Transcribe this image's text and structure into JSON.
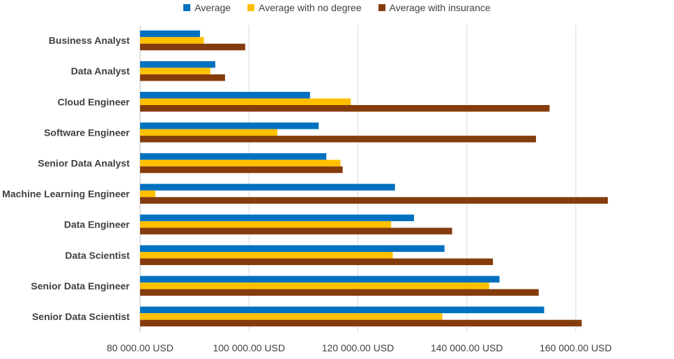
{
  "chart_data": {
    "type": "bar",
    "orientation": "horizontal",
    "categories": [
      "Business Analyst",
      "Data Analyst",
      "Cloud Engineer",
      "Software Engineer",
      "Senior Data Analyst",
      "Machine Learning Engineer",
      "Data Engineer",
      "Data Scientist",
      "Senior Data Engineer",
      "Senior Data Scientist"
    ],
    "series": [
      {
        "name": "Average",
        "color": "#0070C0",
        "values": [
          91000,
          93800,
          111200,
          112800,
          114200,
          126800,
          130300,
          135900,
          146000,
          154200
        ]
      },
      {
        "name": "Average with no degree",
        "color": "#FFC000",
        "values": [
          91700,
          92900,
          118700,
          105200,
          116800,
          82800,
          126100,
          126400,
          144100,
          135500
        ]
      },
      {
        "name": "Average with insurance",
        "color": "#843C0C",
        "values": [
          99300,
          95600,
          155200,
          152700,
          117200,
          165900,
          137300,
          144800,
          153200,
          161100
        ]
      }
    ],
    "xlim": [
      80000,
      160000
    ],
    "xticks": [
      80000,
      100000,
      120000,
      140000,
      160000
    ],
    "xtick_labels": [
      "80 000.00 USD",
      "100 000.00 USD",
      "120 000.00 USD",
      "140 000.00 USD",
      "160 000.00 USD"
    ],
    "title": "",
    "xlabel": "",
    "ylabel": "",
    "grid": "vertical",
    "legend": "top-center"
  }
}
